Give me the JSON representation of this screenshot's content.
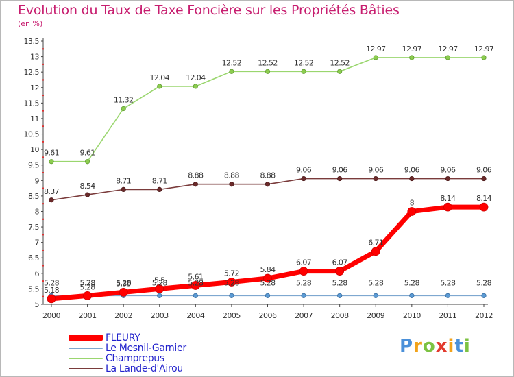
{
  "title": "Evolution du Taux de Taxe Foncière sur les Propriétés Bâties",
  "subtitle": "(en %)",
  "logo": {
    "letters": [
      "P",
      "r",
      "o",
      "x",
      "i",
      "t",
      "i"
    ],
    "colors": [
      "#4a90d9",
      "#f2a31b",
      "#7cc242",
      "#e23a2e",
      "#f2a31b",
      "#4a90d9",
      "#7cc242"
    ]
  },
  "chart_data": {
    "type": "line",
    "title": "Evolution du Taux de Taxe Foncière sur les Propriétés Bâties",
    "ylabel": "(en %)",
    "xlabel": "",
    "x": [
      "2000",
      "2001",
      "2002",
      "2003",
      "2004",
      "2005",
      "2006",
      "2007",
      "2008",
      "2009",
      "2010",
      "2011",
      "2012"
    ],
    "ylim": [
      5,
      13.5
    ],
    "yticks": [
      "5",
      "5.5",
      "6",
      "6.5",
      "7",
      "7.5",
      "8",
      "8.5",
      "9",
      "9.5",
      "10",
      "10.5",
      "11",
      "11.5",
      "12",
      "12.5",
      "13",
      "13.5"
    ],
    "grid": false,
    "legend_position": "bottom-left",
    "series": [
      {
        "name": "FLEURY",
        "color": "#ff0000",
        "values": [
          5.18,
          5.28,
          5.39,
          5.5,
          5.61,
          5.72,
          5.84,
          6.07,
          6.07,
          6.71,
          8,
          8.14,
          8.14
        ],
        "labels": [
          "5.18",
          "5.28",
          "5.39",
          "5.5",
          "5.61",
          "5.72",
          "5.84",
          "6.07",
          "6.07",
          "6.71",
          "8",
          "8.14",
          "8.14"
        ]
      },
      {
        "name": "Le Mesnil-Garnier",
        "color": "#7fa8d0",
        "values": [
          5.28,
          5.28,
          5.28,
          5.28,
          5.28,
          5.28,
          5.28,
          5.28,
          5.28,
          5.28,
          5.28,
          5.28,
          5.28
        ],
        "labels": [
          "5.28",
          "5.28",
          "5.28",
          "5.28",
          "5.28",
          "5.28",
          "5.28",
          "5.28",
          "5.28",
          "5.28",
          "5.28",
          "5.28",
          "5.28"
        ]
      },
      {
        "name": "Champrepus",
        "color": "#9ad66e",
        "values": [
          9.61,
          9.61,
          11.32,
          12.04,
          12.04,
          12.52,
          12.52,
          12.52,
          12.52,
          12.97,
          12.97,
          12.97,
          12.97
        ],
        "labels": [
          "9.61",
          "9.61",
          "11.32",
          "12.04",
          "12.04",
          "12.52",
          "12.52",
          "12.52",
          "12.52",
          "12.97",
          "12.97",
          "12.97",
          "12.97"
        ]
      },
      {
        "name": "La Lande-d'Airou",
        "color": "#7a3b3b",
        "values": [
          8.37,
          8.54,
          8.71,
          8.71,
          8.88,
          8.88,
          8.88,
          9.06,
          9.06,
          9.06,
          9.06,
          9.06,
          9.06
        ],
        "labels": [
          "8.37",
          "8.54",
          "8.71",
          "8.71",
          "8.88",
          "8.88",
          "8.88",
          "9.06",
          "9.06",
          "9.06",
          "9.06",
          "9.06",
          "9.06"
        ]
      }
    ]
  }
}
